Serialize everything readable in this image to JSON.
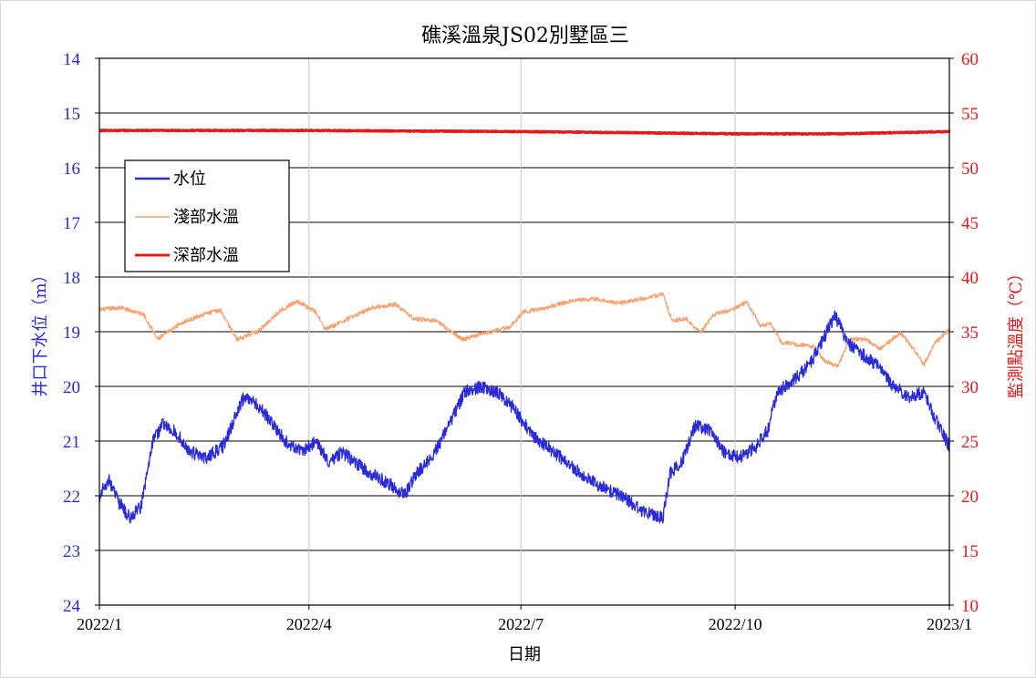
{
  "chart_data": {
    "type": "line",
    "title": "礁溪溫泉JS02別墅區三",
    "xlabel": "日期",
    "ylabel_left": "井口下水位（m）",
    "ylabel_right": "監測點溫度（℃）",
    "x_range": [
      "2022-01-01",
      "2023-01-01"
    ],
    "x_tick_labels": [
      "2022/1",
      "2022/4",
      "2022/7",
      "2022/10",
      "2023/1"
    ],
    "x_ticks": [
      "2022-01-01",
      "2022-04-01",
      "2022-07-01",
      "2022-10-01",
      "2023-01-01"
    ],
    "ylim_left": [
      14,
      24
    ],
    "y_left_inverted": true,
    "y_left_ticks": [
      14,
      15,
      16,
      17,
      18,
      19,
      20,
      21,
      22,
      23,
      24
    ],
    "ylim_right": [
      10,
      60
    ],
    "y_right_ticks": [
      10,
      15,
      20,
      25,
      30,
      35,
      40,
      45,
      50,
      55,
      60
    ],
    "grid": true,
    "legend_position": "top-left",
    "series": [
      {
        "name": "水位",
        "axis": "left",
        "color": "#2a2ad8",
        "noise": 0.12,
        "points": [
          [
            "2022-01-01",
            22.0
          ],
          [
            "2022-01-05",
            21.7
          ],
          [
            "2022-01-09",
            22.1
          ],
          [
            "2022-01-14",
            22.4
          ],
          [
            "2022-01-19",
            22.2
          ],
          [
            "2022-01-24",
            21.0
          ],
          [
            "2022-01-28",
            20.7
          ],
          [
            "2022-02-02",
            20.8
          ],
          [
            "2022-02-09",
            21.2
          ],
          [
            "2022-02-16",
            21.3
          ],
          [
            "2022-02-23",
            21.1
          ],
          [
            "2022-02-28",
            20.6
          ],
          [
            "2022-03-04",
            20.2
          ],
          [
            "2022-03-09",
            20.3
          ],
          [
            "2022-03-15",
            20.6
          ],
          [
            "2022-03-22",
            21.0
          ],
          [
            "2022-03-29",
            21.2
          ],
          [
            "2022-04-04",
            21.0
          ],
          [
            "2022-04-10",
            21.4
          ],
          [
            "2022-04-15",
            21.2
          ],
          [
            "2022-04-21",
            21.4
          ],
          [
            "2022-04-28",
            21.6
          ],
          [
            "2022-05-06",
            21.8
          ],
          [
            "2022-05-12",
            22.0
          ],
          [
            "2022-05-17",
            21.6
          ],
          [
            "2022-05-24",
            21.3
          ],
          [
            "2022-05-31",
            20.7
          ],
          [
            "2022-06-07",
            20.1
          ],
          [
            "2022-06-14",
            20.0
          ],
          [
            "2022-06-21",
            20.1
          ],
          [
            "2022-06-28",
            20.4
          ],
          [
            "2022-07-06",
            20.9
          ],
          [
            "2022-07-15",
            21.2
          ],
          [
            "2022-07-24",
            21.5
          ],
          [
            "2022-08-03",
            21.8
          ],
          [
            "2022-08-13",
            22.0
          ],
          [
            "2022-08-23",
            22.3
          ],
          [
            "2022-08-31",
            22.4
          ],
          [
            "2022-09-03",
            21.6
          ],
          [
            "2022-09-08",
            21.4
          ],
          [
            "2022-09-14",
            20.7
          ],
          [
            "2022-09-20",
            20.8
          ],
          [
            "2022-09-26",
            21.2
          ],
          [
            "2022-10-03",
            21.3
          ],
          [
            "2022-10-10",
            21.1
          ],
          [
            "2022-10-15",
            20.8
          ],
          [
            "2022-10-19",
            20.1
          ],
          [
            "2022-10-26",
            19.9
          ],
          [
            "2022-11-02",
            19.6
          ],
          [
            "2022-11-07",
            19.2
          ],
          [
            "2022-11-13",
            18.7
          ],
          [
            "2022-11-18",
            19.2
          ],
          [
            "2022-11-24",
            19.4
          ],
          [
            "2022-12-01",
            19.6
          ],
          [
            "2022-12-08",
            20.0
          ],
          [
            "2022-12-15",
            20.2
          ],
          [
            "2022-12-21",
            20.1
          ],
          [
            "2022-12-26",
            20.6
          ],
          [
            "2023-01-01",
            21.1
          ]
        ]
      },
      {
        "name": "淺部水溫",
        "axis": "right",
        "color": "#f4a270",
        "noise": 0.2,
        "points": [
          [
            "2022-01-01",
            37.0
          ],
          [
            "2022-01-10",
            37.2
          ],
          [
            "2022-01-20",
            36.6
          ],
          [
            "2022-01-26",
            34.3
          ],
          [
            "2022-02-05",
            35.8
          ],
          [
            "2022-02-15",
            36.6
          ],
          [
            "2022-02-22",
            37.0
          ],
          [
            "2022-03-01",
            34.3
          ],
          [
            "2022-03-10",
            35.0
          ],
          [
            "2022-03-20",
            37.0
          ],
          [
            "2022-03-27",
            37.8
          ],
          [
            "2022-04-04",
            36.8
          ],
          [
            "2022-04-08",
            35.2
          ],
          [
            "2022-04-18",
            36.2
          ],
          [
            "2022-04-28",
            37.2
          ],
          [
            "2022-05-08",
            37.5
          ],
          [
            "2022-05-16",
            36.2
          ],
          [
            "2022-05-26",
            36.0
          ],
          [
            "2022-06-01",
            35.0
          ],
          [
            "2022-06-06",
            34.3
          ],
          [
            "2022-06-16",
            34.9
          ],
          [
            "2022-06-26",
            35.4
          ],
          [
            "2022-07-02",
            36.8
          ],
          [
            "2022-07-12",
            37.2
          ],
          [
            "2022-07-22",
            37.8
          ],
          [
            "2022-08-02",
            38.0
          ],
          [
            "2022-08-12",
            37.6
          ],
          [
            "2022-08-22",
            38.0
          ],
          [
            "2022-08-31",
            38.4
          ],
          [
            "2022-09-04",
            36.0
          ],
          [
            "2022-09-10",
            36.2
          ],
          [
            "2022-09-16",
            34.9
          ],
          [
            "2022-09-22",
            36.6
          ],
          [
            "2022-09-30",
            37.0
          ],
          [
            "2022-10-06",
            37.7
          ],
          [
            "2022-10-12",
            35.5
          ],
          [
            "2022-10-16",
            35.8
          ],
          [
            "2022-10-21",
            34.0
          ],
          [
            "2022-10-29",
            33.8
          ],
          [
            "2022-11-04",
            33.6
          ],
          [
            "2022-11-08",
            32.4
          ],
          [
            "2022-11-14",
            31.8
          ],
          [
            "2022-11-19",
            34.3
          ],
          [
            "2022-11-26",
            34.3
          ],
          [
            "2022-12-02",
            33.4
          ],
          [
            "2022-12-11",
            34.9
          ],
          [
            "2022-12-17",
            33.3
          ],
          [
            "2022-12-21",
            32.0
          ],
          [
            "2022-12-26",
            34.0
          ],
          [
            "2023-01-01",
            35.2
          ]
        ]
      },
      {
        "name": "深部水溫",
        "axis": "right",
        "color": "#e41a1a",
        "noise": 0.05,
        "points": [
          [
            "2022-01-01",
            53.4
          ],
          [
            "2022-04-01",
            53.4
          ],
          [
            "2022-07-01",
            53.3
          ],
          [
            "2022-10-01",
            53.1
          ],
          [
            "2022-11-15",
            53.1
          ],
          [
            "2023-01-01",
            53.3
          ]
        ]
      }
    ]
  },
  "legend": {
    "items": [
      {
        "name": "水位",
        "color": "#2a2ad8"
      },
      {
        "name": "淺部水溫",
        "color": "#f4a270"
      },
      {
        "name": "深部水溫",
        "color": "#e41a1a"
      }
    ]
  }
}
